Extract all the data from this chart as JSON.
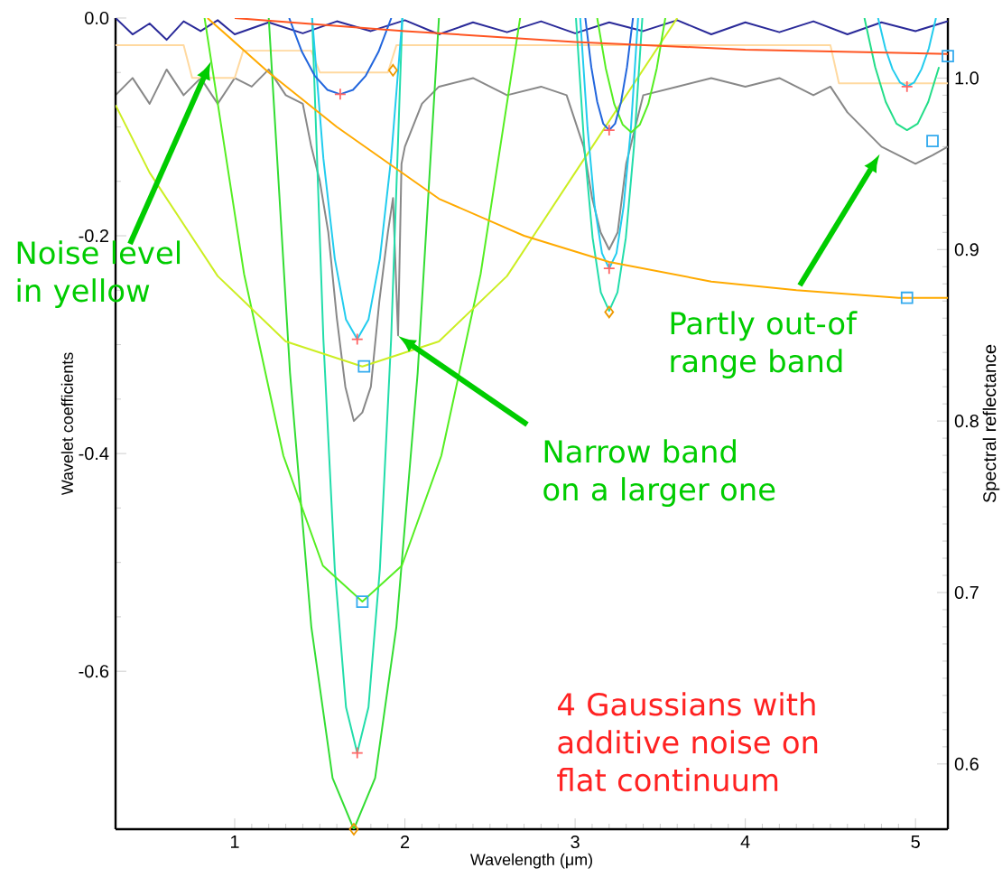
{
  "chart_data": {
    "type": "line",
    "xlabel": "Wavelength (μm)",
    "ylabel": "Wavelet coefficients",
    "y2label": "Spectral reflectance",
    "xlim": [
      0.3,
      5.19
    ],
    "xticks": [
      1,
      2,
      3,
      4,
      5
    ],
    "ylim": [
      -0.745,
      0
    ],
    "yticks": [
      {
        "value": 0,
        "label": "0.0"
      },
      -0.2,
      -0.4,
      -0.6
    ],
    "y2lim": [
      0.562,
      1.035
    ],
    "y2ticks": [
      0.6,
      0.7,
      0.8,
      0.9,
      {
        "value": 1.0,
        "label": "1.0"
      }
    ],
    "grid": false,
    "series": [
      {
        "axis": "y2",
        "color": "#888888",
        "x": [
          0.3,
          0.4,
          0.5,
          0.6,
          0.7,
          0.8,
          0.9,
          1.0,
          1.1,
          1.2,
          1.3,
          1.4,
          1.45,
          1.5,
          1.55,
          1.6,
          1.65,
          1.7,
          1.75,
          1.8,
          1.85,
          1.9,
          1.93,
          1.96,
          1.98,
          2.0,
          2.1,
          2.2,
          2.4,
          2.6,
          2.8,
          2.95,
          3.05,
          3.1,
          3.15,
          3.2,
          3.25,
          3.3,
          3.4,
          3.6,
          3.8,
          4.0,
          4.2,
          4.4,
          4.5,
          4.6,
          4.7,
          4.8,
          4.9,
          5.0,
          5.1,
          5.19
        ],
        "values": [
          0.99,
          1.0,
          0.985,
          1.005,
          0.99,
          1.0,
          0.985,
          1.0,
          0.995,
          1.005,
          0.99,
          0.985,
          0.96,
          0.94,
          0.91,
          0.86,
          0.82,
          0.8,
          0.805,
          0.82,
          0.87,
          0.91,
          0.93,
          0.85,
          0.95,
          0.96,
          0.985,
          0.995,
          1.0,
          0.99,
          0.995,
          0.99,
          0.96,
          0.93,
          0.91,
          0.9,
          0.91,
          0.95,
          0.99,
          0.995,
          1.0,
          0.995,
          1.0,
          0.99,
          0.995,
          0.98,
          0.97,
          0.96,
          0.955,
          0.95,
          0.955,
          0.96
        ]
      },
      {
        "color": "#ffd9a0",
        "x": [
          0.3,
          0.7,
          0.75,
          1.0,
          1.05,
          1.45,
          1.5,
          1.9,
          1.95,
          4.5,
          4.55,
          5.19
        ],
        "values": [
          -0.025,
          -0.025,
          -0.055,
          -0.055,
          -0.03,
          -0.03,
          -0.05,
          -0.05,
          -0.025,
          -0.025,
          -0.06,
          -0.06
        ]
      },
      {
        "color": "#2a2a99",
        "x": [
          0.3,
          0.4,
          0.5,
          0.6,
          0.7,
          0.8,
          0.9,
          1.0,
          1.2,
          1.4,
          1.6,
          1.8,
          2.0,
          2.2,
          2.4,
          2.6,
          2.8,
          3.0,
          3.2,
          3.4,
          3.6,
          3.8,
          4.0,
          4.2,
          4.4,
          4.6,
          4.8,
          5.0,
          5.19
        ],
        "values": [
          0,
          -0.015,
          -0.005,
          -0.02,
          -0.003,
          -0.012,
          -0.002,
          -0.015,
          -0.004,
          -0.014,
          -0.003,
          -0.012,
          -0.002,
          -0.015,
          -0.004,
          -0.013,
          -0.003,
          -0.014,
          -0.004,
          -0.012,
          -0.002,
          -0.015,
          -0.004,
          -0.013,
          -0.003,
          -0.015,
          -0.004,
          -0.012,
          -0.003
        ]
      },
      {
        "color": "#33dd33",
        "x": [
          1.2,
          1.325,
          1.45,
          1.575,
          1.7,
          1.825,
          1.95,
          2.075,
          2.2
        ],
        "values": [
          0,
          -0.326,
          -0.559,
          -0.698,
          -0.745,
          -0.698,
          -0.559,
          -0.326,
          0
        ]
      },
      {
        "color": "#22ddaa",
        "x": [
          1.455,
          1.521,
          1.588,
          1.654,
          1.72,
          1.786,
          1.853,
          1.919,
          1.985
        ],
        "values": [
          0,
          -0.295,
          -0.506,
          -0.633,
          -0.675,
          -0.633,
          -0.506,
          -0.295,
          0
        ]
      },
      {
        "color": "#55ee22",
        "x": [
          0.823,
          1.055,
          1.286,
          1.518,
          1.75,
          1.982,
          2.214,
          2.445,
          2.677
        ],
        "values": [
          0,
          -0.235,
          -0.402,
          -0.503,
          -0.536,
          -0.503,
          -0.402,
          -0.235,
          0
        ]
      },
      {
        "color": "#ccee22",
        "x": [
          0.3,
          0.5,
          0.9,
          1.3,
          1.75,
          2.2,
          2.6,
          3.0,
          3.6
        ],
        "values": [
          -0.08,
          -0.142,
          -0.237,
          -0.297,
          -0.32,
          -0.297,
          -0.237,
          -0.142,
          0
        ]
      },
      {
        "color": "#22ccee",
        "x": [
          1.455,
          1.521,
          1.588,
          1.654,
          1.72,
          1.786,
          1.853,
          1.919,
          1.985
        ],
        "values": [
          0,
          -0.129,
          -0.221,
          -0.277,
          -0.295,
          -0.277,
          -0.221,
          -0.129,
          0
        ]
      },
      {
        "color": "#2266dd",
        "x": [
          1.32,
          1.395,
          1.47,
          1.545,
          1.62,
          1.695,
          1.77,
          1.845,
          1.92
        ],
        "values": [
          0,
          -0.031,
          -0.053,
          -0.066,
          -0.07,
          -0.066,
          -0.053,
          -0.031,
          0
        ]
      },
      {
        "color": "#22ddaa",
        "x": [
          3.005,
          3.054,
          3.103,
          3.151,
          3.2,
          3.249,
          3.298,
          3.346,
          3.395
        ],
        "values": [
          0,
          -0.118,
          -0.202,
          -0.252,
          -0.269,
          -0.252,
          -0.202,
          -0.118,
          0
        ]
      },
      {
        "color": "#22ccee",
        "x": [
          3.03,
          3.073,
          3.115,
          3.158,
          3.2,
          3.243,
          3.285,
          3.328,
          3.37
        ],
        "values": [
          0,
          -0.101,
          -0.173,
          -0.216,
          -0.23,
          -0.216,
          -0.173,
          -0.101,
          0
        ]
      },
      {
        "color": "#55ee22",
        "x": [
          3.13,
          3.18,
          3.23,
          3.28,
          3.33,
          3.38,
          3.43,
          3.48,
          3.53
        ],
        "values": [
          0,
          -0.046,
          -0.079,
          -0.098,
          -0.105,
          -0.098,
          -0.079,
          -0.046,
          0
        ]
      },
      {
        "color": "#2266dd",
        "x": [
          3.06,
          3.095,
          3.13,
          3.165,
          3.2,
          3.235,
          3.27,
          3.305,
          3.34
        ],
        "values": [
          0,
          -0.045,
          -0.077,
          -0.097,
          -0.103,
          -0.097,
          -0.077,
          -0.045,
          0
        ]
      },
      {
        "color": "#22dd88",
        "x": [
          4.7,
          4.763,
          4.825,
          4.888,
          4.95,
          5.013,
          5.075,
          5.138
        ],
        "values": [
          0,
          -0.045,
          -0.077,
          -0.097,
          -0.103,
          -0.097,
          -0.077,
          -0.045
        ]
      },
      {
        "color": "#22ccee",
        "x": [
          4.78,
          4.823,
          4.865,
          4.908,
          4.95,
          4.993,
          5.035,
          5.078,
          5.12
        ],
        "values": [
          0,
          -0.028,
          -0.047,
          -0.059,
          -0.063,
          -0.059,
          -0.047,
          -0.028,
          0
        ]
      },
      {
        "color": "#ffaa00",
        "x": [
          0.84,
          1.2,
          1.6,
          2.2,
          2.7,
          3.2,
          3.8,
          4.3,
          4.9,
          5.19
        ],
        "values": [
          0,
          -0.05,
          -0.1,
          -0.166,
          -0.2,
          -0.224,
          -0.242,
          -0.25,
          -0.257,
          -0.257
        ]
      },
      {
        "color": "#ff5522",
        "x": [
          1.0,
          2.0,
          3.0,
          4.0,
          5.19
        ],
        "values": [
          0,
          -0.012,
          -0.022,
          -0.029,
          -0.033
        ]
      },
      {
        "type": "scatter",
        "marker": "square",
        "color": "#33aaee",
        "x": [
          1.76,
          1.75,
          4.95,
          5.1,
          5.19
        ],
        "values": [
          -0.32,
          -0.536,
          -0.257,
          -0.113,
          -0.035
        ]
      },
      {
        "type": "scatter",
        "marker": "diamond",
        "color": "#ee9900",
        "x": [
          1.93,
          3.2,
          1.7
        ],
        "values": [
          -0.048,
          -0.27,
          -0.745
        ]
      },
      {
        "type": "scatter",
        "marker": "cross",
        "color": "#ff6666",
        "x": [
          1.62,
          1.72,
          1.72,
          3.2,
          3.2,
          4.95
        ],
        "values": [
          -0.07,
          -0.295,
          -0.675,
          -0.23,
          -0.103,
          -0.063
        ]
      }
    ],
    "annotations": [
      {
        "text": "Noise level in yellow",
        "x": 0.86,
        "y": -0.04
      },
      {
        "text": "Narrow band on a larger one",
        "x": 1.96,
        "y": -0.292
      },
      {
        "text": "Partly out-of range band",
        "x": 4.79,
        "y": -0.125
      },
      "4 Gaussians with additive noise on flat continuum"
    ]
  }
}
